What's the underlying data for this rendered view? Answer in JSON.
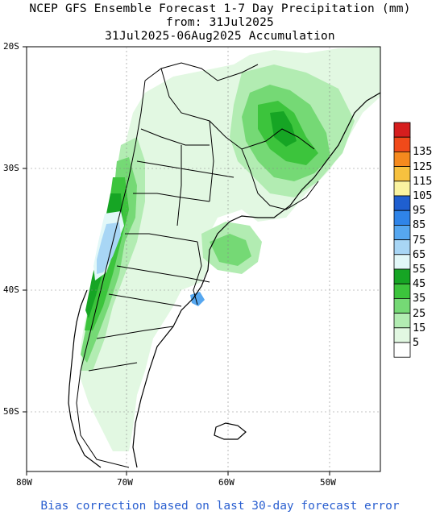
{
  "title": {
    "line1": "NCEP GFS Ensemble Forecast 1-7 Day Precipitation (mm)",
    "line2": "from: 31Jul2025",
    "line3": "31Jul2025-06Aug2025 Accumulation"
  },
  "axes": {
    "lat_labels": [
      "20S",
      "30S",
      "40S",
      "50S"
    ],
    "lon_labels": [
      "80W",
      "70W",
      "60W",
      "50W"
    ]
  },
  "legend": {
    "bins": [
      {
        "label": "",
        "color": "#d61e1e"
      },
      {
        "label": "135",
        "color": "#f04a1a"
      },
      {
        "label": "125",
        "color": "#f58a1e"
      },
      {
        "label": "115",
        "color": "#f7c13f"
      },
      {
        "label": "105",
        "color": "#faf3a0"
      },
      {
        "label": "95",
        "color": "#1f5fd0"
      },
      {
        "label": "85",
        "color": "#2f84e8"
      },
      {
        "label": "75",
        "color": "#56a7f0"
      },
      {
        "label": "65",
        "color": "#a8d6f5"
      },
      {
        "label": "55",
        "color": "#e2f8f8"
      },
      {
        "label": "45",
        "color": "#16a524"
      },
      {
        "label": "35",
        "color": "#3cc43c"
      },
      {
        "label": "25",
        "color": "#75d975"
      },
      {
        "label": "15",
        "color": "#b2ecb2"
      },
      {
        "label": "5",
        "color": "#e2f8e2"
      },
      {
        "label": "",
        "color": "#ffffff"
      }
    ]
  },
  "footer": "Bias correction based on last 30-day forecast error"
}
